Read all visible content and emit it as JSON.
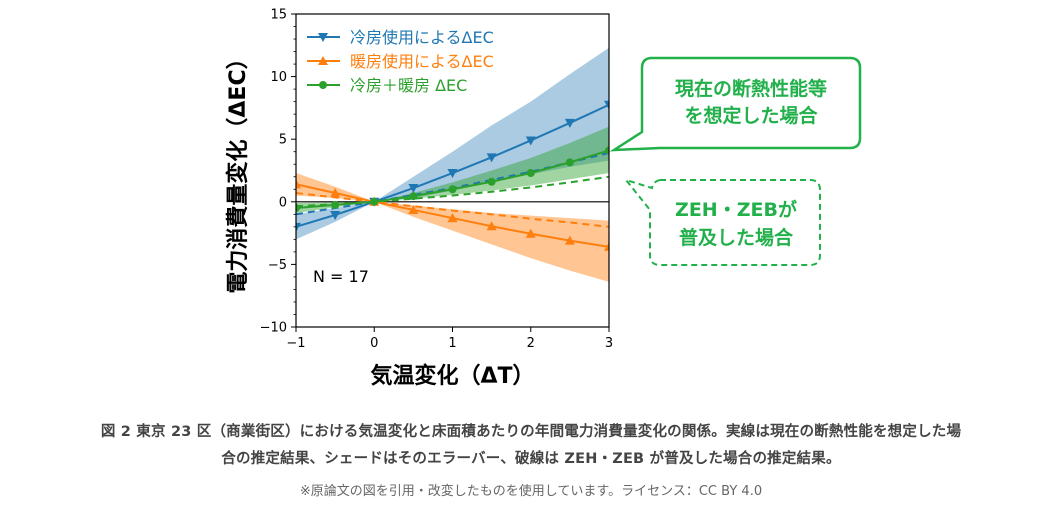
{
  "chart_data": {
    "type": "line",
    "title": "",
    "xlabel": "気温変化（ΔT）",
    "ylabel": "電力消費量変化（ΔEC）",
    "xlim": [
      -1,
      3
    ],
    "ylim": [
      -10,
      15
    ],
    "xticks": [
      "−1",
      "0",
      "1",
      "2",
      "3"
    ],
    "yticks": [
      "−10",
      "−5",
      "0",
      "5",
      "10",
      "15"
    ],
    "x": [
      -1,
      -0.5,
      0,
      0.5,
      1,
      1.5,
      2,
      2.5,
      3
    ],
    "grid": false,
    "legend_position": "top-left",
    "annotation_n": "N = 17",
    "series": [
      {
        "name": "冷房使用によるΔEC",
        "color": "#1f77b4",
        "marker": "triangle-down",
        "values": [
          -2.0,
          -1.05,
          0,
          1.1,
          2.3,
          3.55,
          4.9,
          6.3,
          7.75
        ],
        "band_lower": [
          -3.0,
          -1.6,
          0,
          0.3,
          0.9,
          1.6,
          2.2,
          2.8,
          3.3
        ],
        "band_upper": [
          -1.0,
          -0.5,
          0,
          2.0,
          4.0,
          6.1,
          8.0,
          10.2,
          12.3
        ],
        "dashed_values": [
          -1.0,
          -0.5,
          0,
          0.55,
          1.1,
          1.75,
          2.4,
          3.15,
          3.9
        ]
      },
      {
        "name": "暖房使用によるΔEC",
        "color": "#ff7f0e",
        "marker": "triangle-up",
        "values": [
          1.4,
          0.7,
          0,
          -0.65,
          -1.3,
          -1.95,
          -2.55,
          -3.1,
          -3.6
        ],
        "band_lower": [
          0.5,
          0.3,
          0,
          -1.2,
          -2.3,
          -3.4,
          -4.5,
          -5.5,
          -6.4
        ],
        "band_upper": [
          2.3,
          1.2,
          0,
          -0.3,
          -0.6,
          -0.9,
          -1.1,
          -1.3,
          -1.5
        ],
        "dashed_values": [
          0.7,
          0.35,
          0,
          -0.35,
          -0.7,
          -1.0,
          -1.35,
          -1.65,
          -2.0
        ]
      },
      {
        "name": "冷房＋暖房 ΔEC",
        "color": "#2ca02c",
        "marker": "circle",
        "values": [
          -0.5,
          -0.25,
          0,
          0.45,
          1.0,
          1.6,
          2.3,
          3.15,
          4.1
        ],
        "band_lower": [
          -0.9,
          -0.45,
          0,
          0.25,
          0.55,
          0.9,
          1.3,
          1.8,
          2.3
        ],
        "band_upper": [
          -0.1,
          -0.05,
          0,
          0.7,
          1.55,
          2.5,
          3.5,
          4.7,
          6.0
        ],
        "dashed_values": [
          -0.35,
          -0.2,
          0,
          0.25,
          0.5,
          0.8,
          1.15,
          1.55,
          2.0
        ]
      }
    ]
  },
  "callouts": {
    "current": "現在の断熱性能等\nを想定した場合",
    "zeh": "ZEH・ZEBが\n普及した場合"
  },
  "caption": {
    "line1": "図 2 東京 23 区（商業街区）における気温変化と床面積あたりの年間電力消費量変化の関係。実線は現在の断熱性能を想定した場",
    "line2": "合の推定結果、シェードはそのエラーバー、破線は ZEH・ZEB が普及した場合の推定結果。",
    "license": "※原論文の図を引用・改変したものを使用しています。ライセンス：CC BY 4.0"
  },
  "colors": {
    "callout_green": "#22b04b",
    "axis": "#000000"
  }
}
